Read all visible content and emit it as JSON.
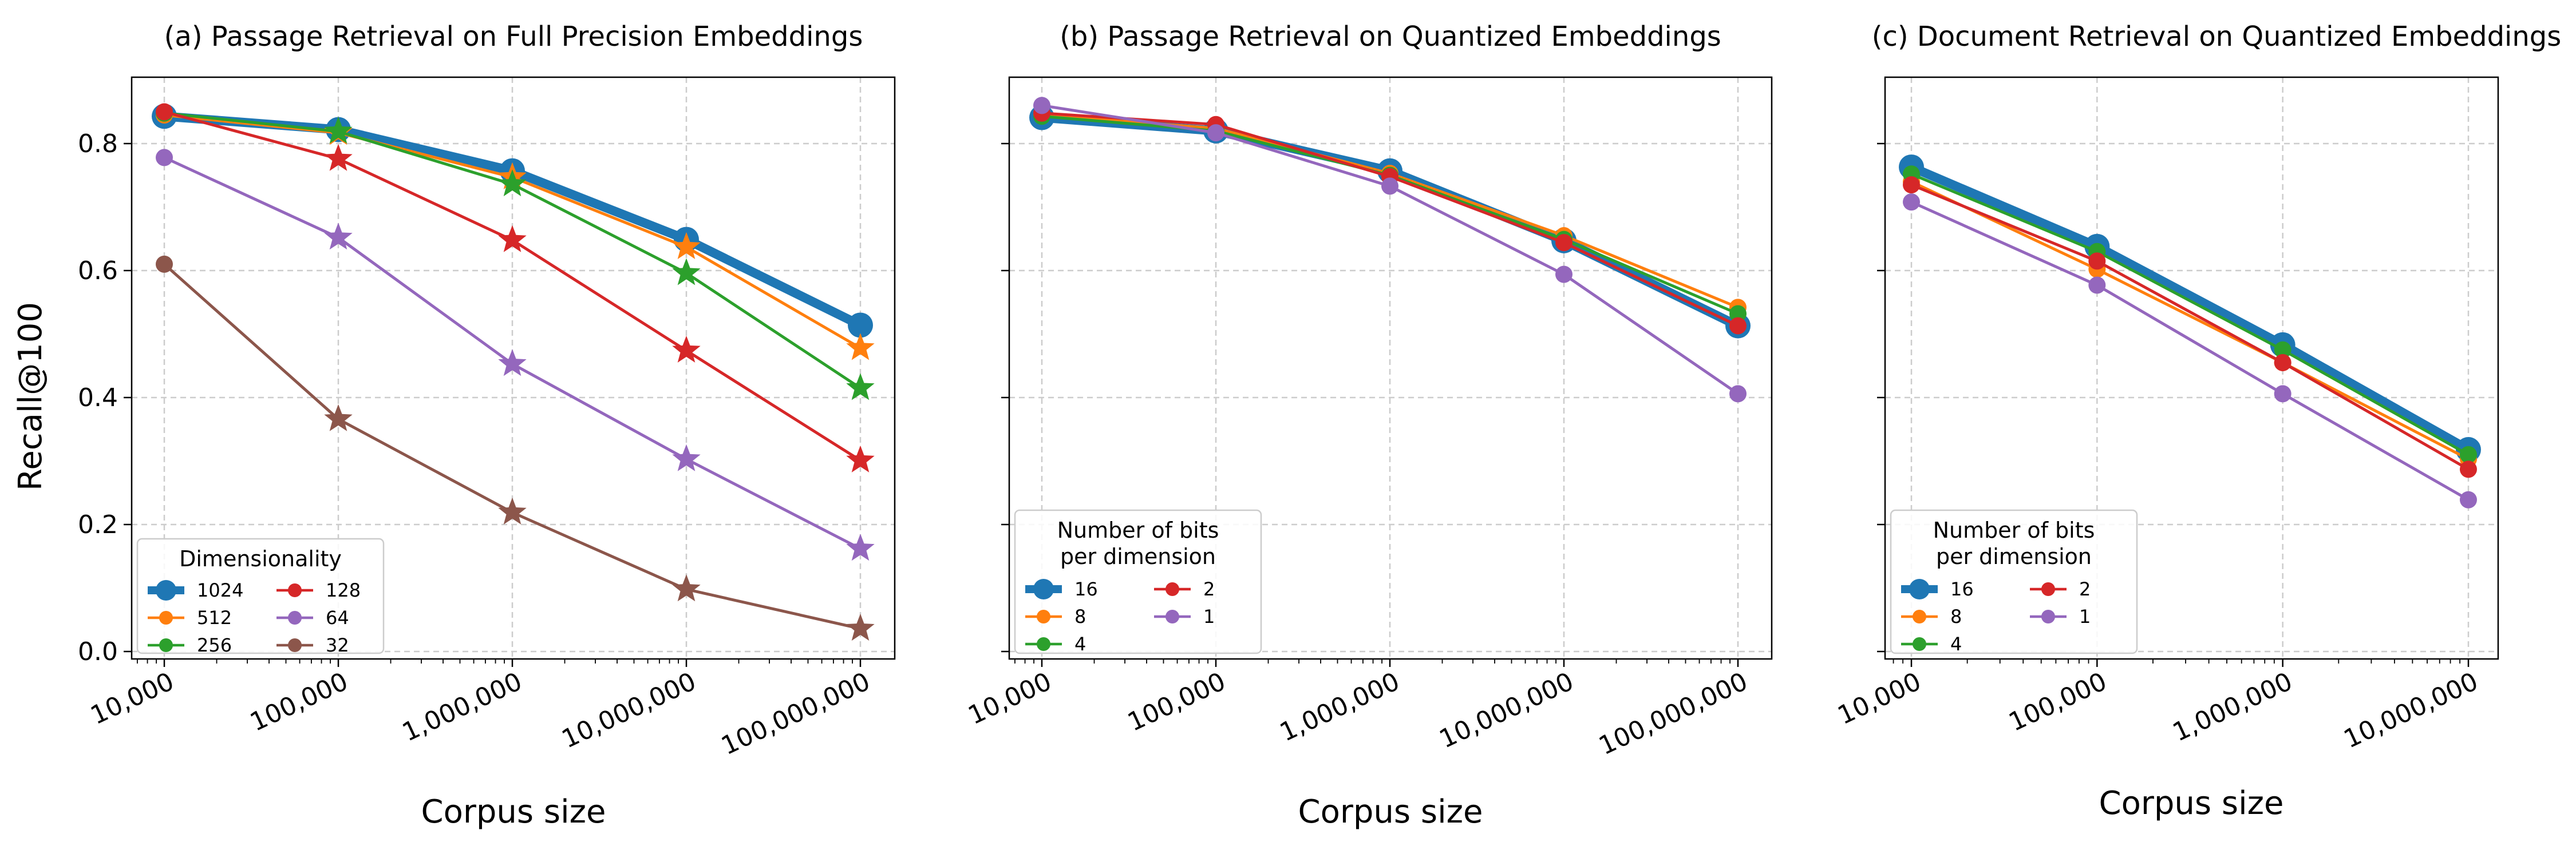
{
  "ylabel": "Recall@100",
  "xlabel": "Corpus size",
  "y_ticks": [
    "0.0",
    "0.2",
    "0.4",
    "0.6",
    "0.8"
  ],
  "colors": {
    "blue": "#1f77b4",
    "orange": "#ff7f0e",
    "green": "#2ca02c",
    "red": "#d62728",
    "purple": "#9467bd",
    "brown": "#8c564b",
    "grid": "#cccccc"
  },
  "chart_data": [
    {
      "type": "line",
      "title": "(a) Passage Retrieval on Full Precision Embeddings",
      "xlabel": "Corpus size",
      "ylabel": "Recall@100",
      "x_scale": "log",
      "x": [
        10000,
        100000,
        1000000,
        10000000,
        100000000
      ],
      "x_ticklabels": [
        "10,000",
        "100,000",
        "1,000,000",
        "10,000,000",
        "100,000,000"
      ],
      "ylim": [
        0,
        0.9
      ],
      "grid": true,
      "legend": {
        "title": "Dimensionality",
        "placement": "lower-left",
        "ncol": 2
      },
      "series": [
        {
          "name": "1024",
          "color": "#1f77b4",
          "values": [
            0.843,
            0.822,
            0.757,
            0.649,
            0.514
          ]
        },
        {
          "name": "512",
          "color": "#ff7f0e",
          "values": [
            0.845,
            0.817,
            0.747,
            0.637,
            0.478
          ]
        },
        {
          "name": "256",
          "color": "#2ca02c",
          "values": [
            0.848,
            0.819,
            0.736,
            0.596,
            0.415
          ]
        },
        {
          "name": "128",
          "color": "#d62728",
          "values": [
            0.85,
            0.776,
            0.648,
            0.474,
            0.301
          ]
        },
        {
          "name": "64",
          "color": "#9467bd",
          "values": [
            0.778,
            0.652,
            0.453,
            0.303,
            0.162
          ]
        },
        {
          "name": "32",
          "color": "#8c564b",
          "values": [
            0.61,
            0.366,
            0.219,
            0.098,
            0.036
          ]
        }
      ]
    },
    {
      "type": "line",
      "title": "(b) Passage Retrieval on Quantized Embeddings",
      "xlabel": "Corpus size",
      "x_scale": "log",
      "x": [
        10000,
        100000,
        1000000,
        10000000,
        100000000
      ],
      "x_ticklabels": [
        "10,000",
        "100,000",
        "1,000,000",
        "10,000,000",
        "100,000,000"
      ],
      "ylim": [
        0,
        0.9
      ],
      "grid": true,
      "legend": {
        "title": "Number of bits\nper dimension",
        "placement": "lower-left",
        "ncol": 2
      },
      "series": [
        {
          "name": "16",
          "color": "#1f77b4",
          "values": [
            0.841,
            0.82,
            0.757,
            0.647,
            0.513
          ]
        },
        {
          "name": "8",
          "color": "#ff7f0e",
          "values": [
            0.845,
            0.824,
            0.753,
            0.655,
            0.542
          ]
        },
        {
          "name": "4",
          "color": "#2ca02c",
          "values": [
            0.843,
            0.82,
            0.75,
            0.649,
            0.532
          ]
        },
        {
          "name": "2",
          "color": "#d62728",
          "values": [
            0.848,
            0.83,
            0.748,
            0.644,
            0.513
          ]
        },
        {
          "name": "1",
          "color": "#9467bd",
          "values": [
            0.86,
            0.817,
            0.733,
            0.594,
            0.406
          ]
        }
      ]
    },
    {
      "type": "line",
      "title": "(c) Document Retrieval on Quantized Embeddings",
      "xlabel": "Corpus size",
      "x_scale": "log",
      "x": [
        10000,
        100000,
        1000000,
        10000000
      ],
      "x_ticklabels": [
        "10,000",
        "100,000",
        "1,000,000",
        "10,000,000"
      ],
      "ylim": [
        0,
        0.9
      ],
      "grid": true,
      "legend": {
        "title": "Number of bits\nper dimension",
        "placement": "lower-left",
        "ncol": 2
      },
      "series": [
        {
          "name": "16",
          "color": "#1f77b4",
          "values": [
            0.763,
            0.638,
            0.483,
            0.318
          ]
        },
        {
          "name": "8",
          "color": "#ff7f0e",
          "values": [
            0.74,
            0.602,
            0.455,
            0.303
          ]
        },
        {
          "name": "4",
          "color": "#2ca02c",
          "values": [
            0.752,
            0.63,
            0.475,
            0.31
          ]
        },
        {
          "name": "2",
          "color": "#d62728",
          "values": [
            0.735,
            0.615,
            0.455,
            0.287
          ]
        },
        {
          "name": "1",
          "color": "#9467bd",
          "values": [
            0.708,
            0.577,
            0.406,
            0.239
          ]
        }
      ]
    }
  ]
}
